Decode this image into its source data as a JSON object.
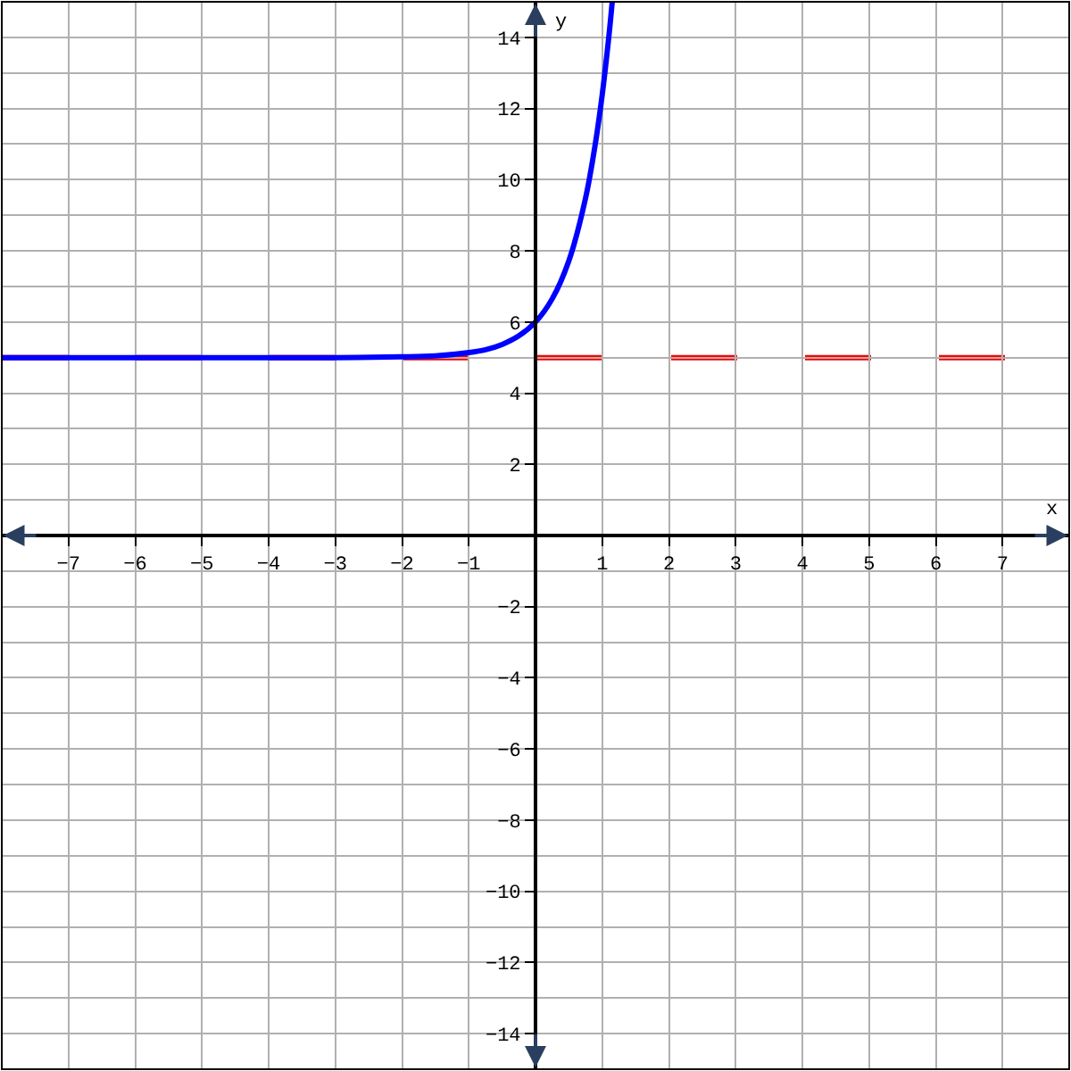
{
  "chart_data": {
    "type": "line",
    "xlabel": "x",
    "ylabel": "y",
    "x": [
      -8,
      -7,
      -6,
      -5,
      -4,
      -3,
      -2,
      -1.5,
      -1,
      -0.75,
      -0.5,
      -0.25,
      0,
      0.25,
      0.5,
      0.75,
      0.9,
      1,
      1.1,
      1.15
    ],
    "series": [
      {
        "color": "#0000ff",
        "values": [
          5.0,
          5.0,
          5.0,
          5.0,
          5.0,
          5.0,
          5.02,
          5.05,
          5.14,
          5.22,
          5.37,
          5.61,
          6.0,
          6.65,
          7.72,
          9.48,
          11.05,
          12.39,
          14.03,
          15.0
        ]
      }
    ],
    "xlim": [
      -8,
      8
    ],
    "ylim": [
      -15,
      15
    ],
    "xticks": [
      -7,
      -6,
      -5,
      -4,
      -3,
      -2,
      -1,
      1,
      2,
      3,
      4,
      5,
      6,
      7
    ],
    "yticks": [
      -14,
      -12,
      -10,
      -8,
      -6,
      -4,
      -2,
      2,
      4,
      6,
      8,
      10,
      12,
      14
    ],
    "ref_lines": [
      {
        "axis": "y",
        "value": 5,
        "color": "#ff0000",
        "line_style": "dashed"
      }
    ],
    "grid": true,
    "marker": "none",
    "line_style": "solid"
  }
}
